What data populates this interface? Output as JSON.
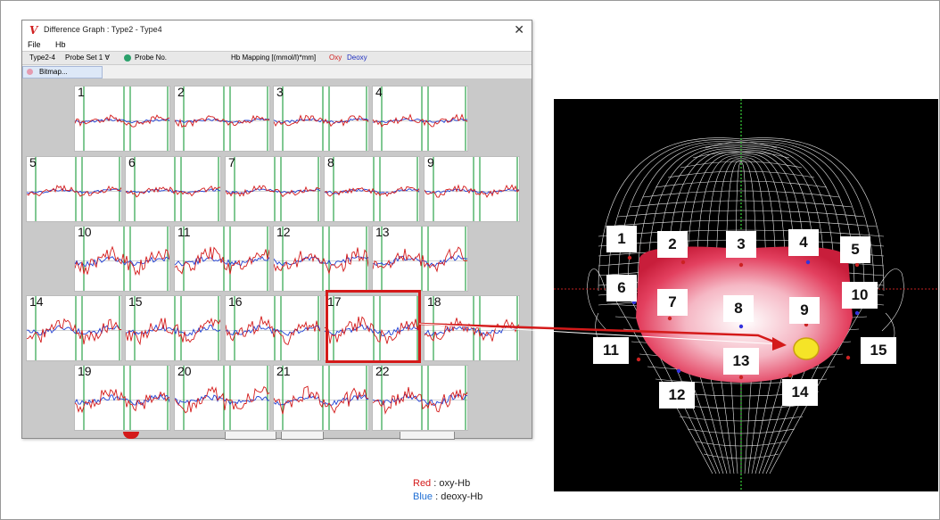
{
  "window": {
    "logo": "V",
    "title": "Difference Graph : Type2 - Type4",
    "close_glyph": "✕",
    "menu": [
      "File",
      "Hb"
    ],
    "toolbar": {
      "type": "Type2-4",
      "probe_set": "Probe Set 1 ∀",
      "probe_no": "Probe No.",
      "mapping": "Hb Mapping [(mmol/l)*mm]",
      "oxy": "Oxy",
      "deoxy": "Deoxy"
    },
    "popup_item": "Bitmap...",
    "selected_channel": "17"
  },
  "channels": [
    "1",
    "2",
    "3",
    "4",
    "5",
    "6",
    "7",
    "8",
    "9",
    "10",
    "11",
    "12",
    "13",
    "14",
    "15",
    "16",
    "17",
    "18",
    "19",
    "20",
    "21",
    "22"
  ],
  "head_labels": [
    "1",
    "2",
    "3",
    "4",
    "5",
    "6",
    "7",
    "8",
    "9",
    "10",
    "11",
    "12",
    "13",
    "14",
    "15"
  ],
  "legend": {
    "red_word": "Red",
    "red_text": " : oxy-Hb",
    "blue_word": "Blue",
    "blue_text": " : deoxy-Hb"
  },
  "colors": {
    "oxy": "#d41a1a",
    "deoxy": "#1f3fd4",
    "marker": "#2ba34a",
    "highlight": "#d41a1a"
  }
}
